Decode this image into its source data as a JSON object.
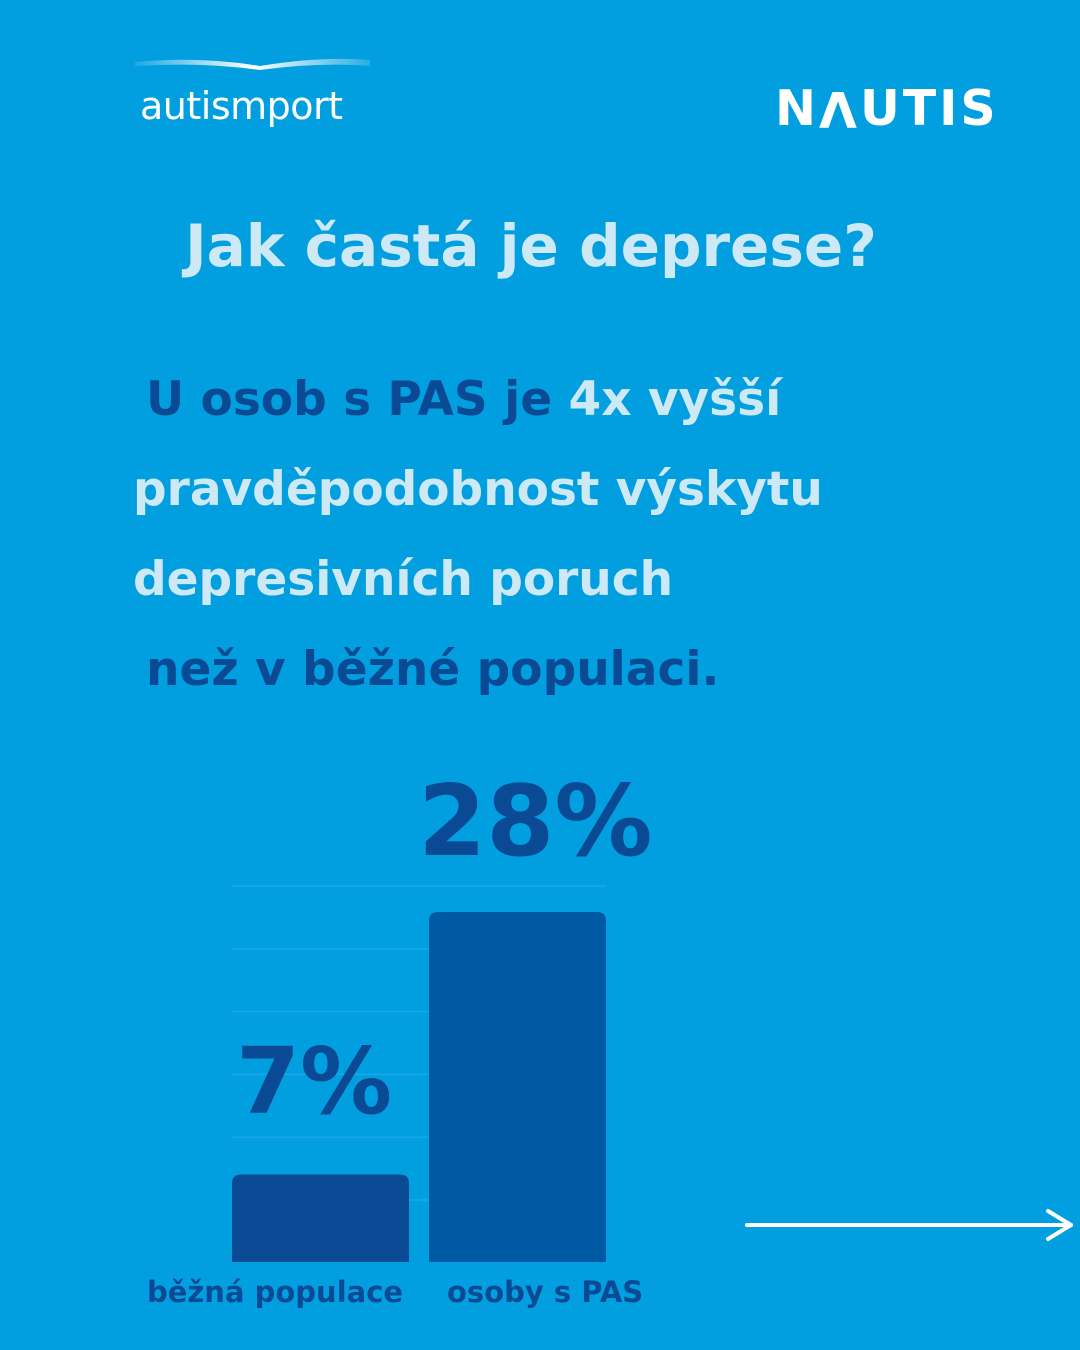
{
  "logos": {
    "left": "autismport",
    "right_prefix": "N",
    "right_flipped": "V",
    "right_suffix": "UTIS"
  },
  "title": "Jak častá je deprese?",
  "statement": {
    "line1_dark": "U osob s PAS je",
    "line1_light": "4x vyšší",
    "line2": "pravděpodobnost výskytu",
    "line3": "depresivních poruch",
    "line4": "než v běžné populaci."
  },
  "chart_data": {
    "type": "bar",
    "categories": [
      "běžná populace",
      "osoby s PAS"
    ],
    "values": [
      7,
      28
    ],
    "value_labels": [
      "7%",
      "28%"
    ],
    "title": "",
    "xlabel": "",
    "ylabel": "",
    "ylim": [
      0,
      30
    ],
    "grid": true,
    "legend": "none"
  },
  "colors": {
    "background": "#029fe0",
    "bar": "#0a4a94",
    "bar_highlight": "#0059a3",
    "text_light": "#cde9f6",
    "text_dark": "#0a4a94"
  },
  "icons": [
    "arrow-right-icon"
  ]
}
